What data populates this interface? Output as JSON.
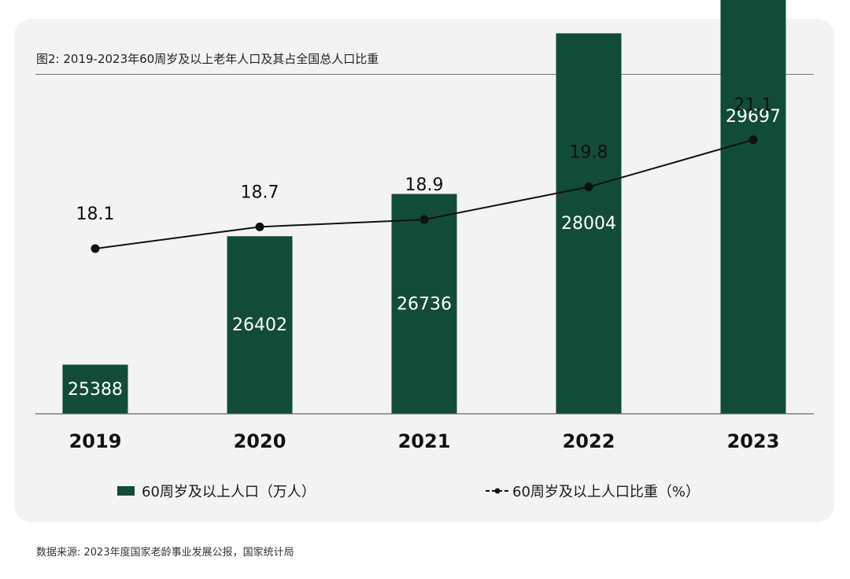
{
  "title": "图2: 2019-2023年60周岁及以上老年人口及其占全国总人口比重",
  "source": "数据来源: 2023年度国家老龄事业发展公报，国家统计局",
  "colors": {
    "bar": "#124c39",
    "line": "#111111",
    "card": "#f3f3f3"
  },
  "chart_data": {
    "type": "bar",
    "categories": [
      "2019",
      "2020",
      "2021",
      "2022",
      "2023"
    ],
    "series": [
      {
        "name": "60周岁及以上人口（万人）",
        "type": "bar",
        "values": [
          25388,
          26402,
          26736,
          28004,
          29697
        ]
      },
      {
        "name": "60周岁及以上人口比重（%）",
        "type": "line",
        "values": [
          18.1,
          18.7,
          18.9,
          19.8,
          21.1
        ]
      }
    ],
    "legend": "bottom",
    "grid": false
  }
}
